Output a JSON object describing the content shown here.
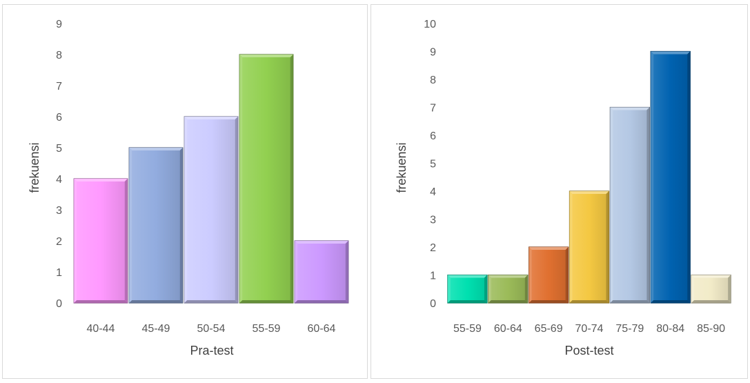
{
  "chart_data": [
    {
      "type": "bar",
      "categories": [
        "40-44",
        "45-49",
        "50-54",
        "55-59",
        "60-64"
      ],
      "values": [
        4,
        5,
        6,
        8,
        2
      ],
      "xlabel": "Pra-test",
      "ylabel": "frekuensi",
      "ylim": [
        0,
        9
      ],
      "ticks": [
        "0",
        "1",
        "2",
        "3",
        "4",
        "5",
        "6",
        "7",
        "8",
        "9"
      ],
      "colors": [
        "#ff99ff",
        "#92acdf",
        "#ccccff",
        "#92d050",
        "#cc99ff"
      ],
      "grid": false,
      "legend": "none"
    },
    {
      "type": "bar",
      "categories": [
        "55-59",
        "60-64",
        "65-69",
        "70-74",
        "75-79",
        "80-84",
        "85-90"
      ],
      "values": [
        1,
        1,
        2,
        4,
        7,
        9,
        1
      ],
      "xlabel": "Post-test",
      "ylabel": "frekuensi",
      "ylim": [
        0,
        10
      ],
      "ticks": [
        "0",
        "1",
        "2",
        "3",
        "4",
        "5",
        "6",
        "7",
        "8",
        "9",
        "10"
      ],
      "colors": [
        "#00e0b0",
        "#9bbb59",
        "#e07030",
        "#f4c842",
        "#b4c8e4",
        "#0062b0",
        "#f2ebc8"
      ],
      "grid": false,
      "legend": "none"
    }
  ]
}
